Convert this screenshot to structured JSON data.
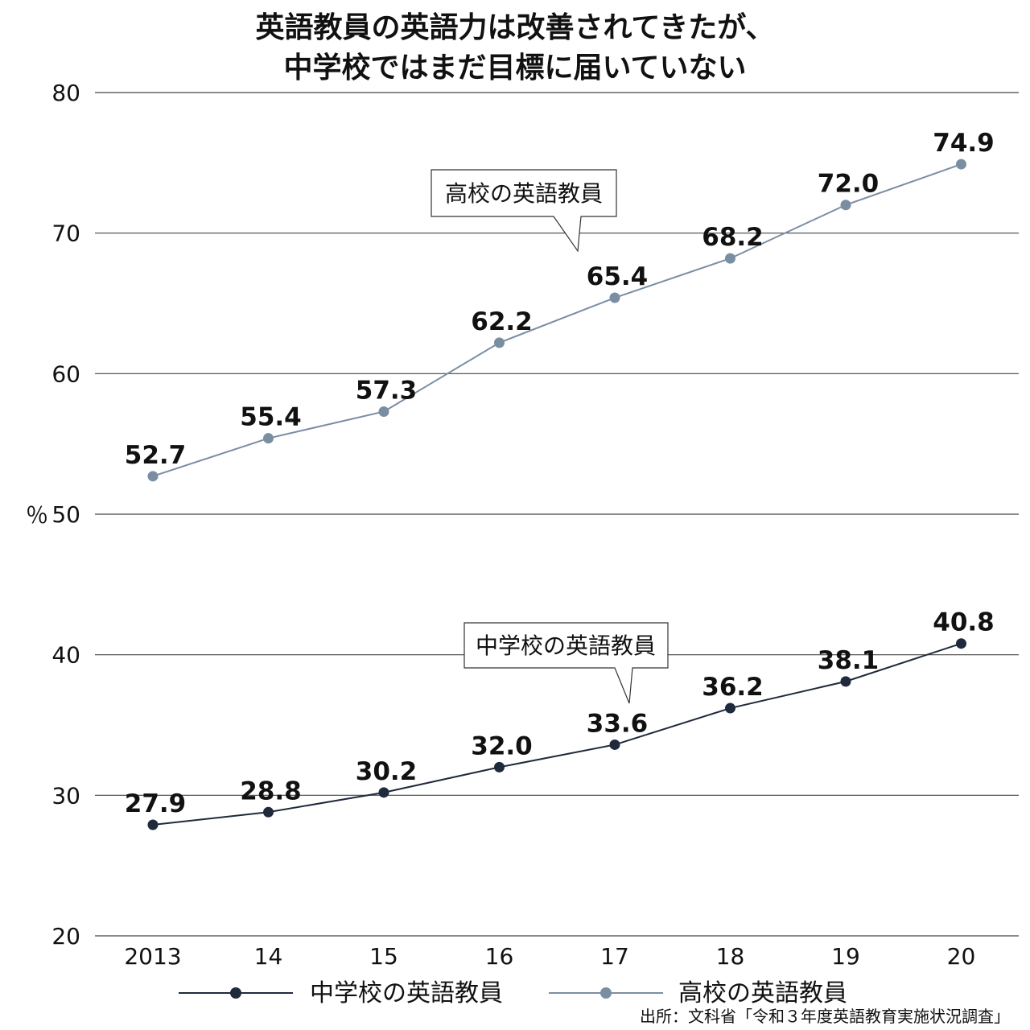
{
  "title_lines": [
    "英語教員の英語力は改善されてきたが、",
    "中学校ではまだ目標に届いていない"
  ],
  "source": "出所：文科省「令和３年度英語教育実施状況調査」",
  "chart_data": {
    "type": "line",
    "title": "英語教員の英語力は改善されてきたが、中学校ではまだ目標に届いていない",
    "ylabel": "％",
    "ylim": [
      20,
      80
    ],
    "yticks": [
      "20",
      "30",
      "40",
      "50",
      "60",
      "70",
      "80"
    ],
    "categories": [
      "2013",
      "14",
      "15",
      "16",
      "17",
      "18",
      "19",
      "20"
    ],
    "grid": true,
    "legend_position": "bottom",
    "series": [
      {
        "name": "中学校の英語教員",
        "color": "#1f2a3c",
        "values": [
          27.9,
          28.8,
          30.2,
          32.0,
          33.6,
          36.2,
          38.1,
          40.8
        ],
        "labels": [
          "27.9",
          "28.8",
          "30.2",
          "32.0",
          "33.6",
          "36.2",
          "38.1",
          "40.8"
        ],
        "callout": "中学校の英語教員"
      },
      {
        "name": "高校の英語教員",
        "color": "#7a8ea2",
        "values": [
          52.7,
          55.4,
          57.3,
          62.2,
          65.4,
          68.2,
          72.0,
          74.9
        ],
        "labels": [
          "52.7",
          "55.4",
          "57.3",
          "62.2",
          "65.4",
          "68.2",
          "72.0",
          "74.9"
        ],
        "callout": "高校の英語教員"
      }
    ]
  }
}
